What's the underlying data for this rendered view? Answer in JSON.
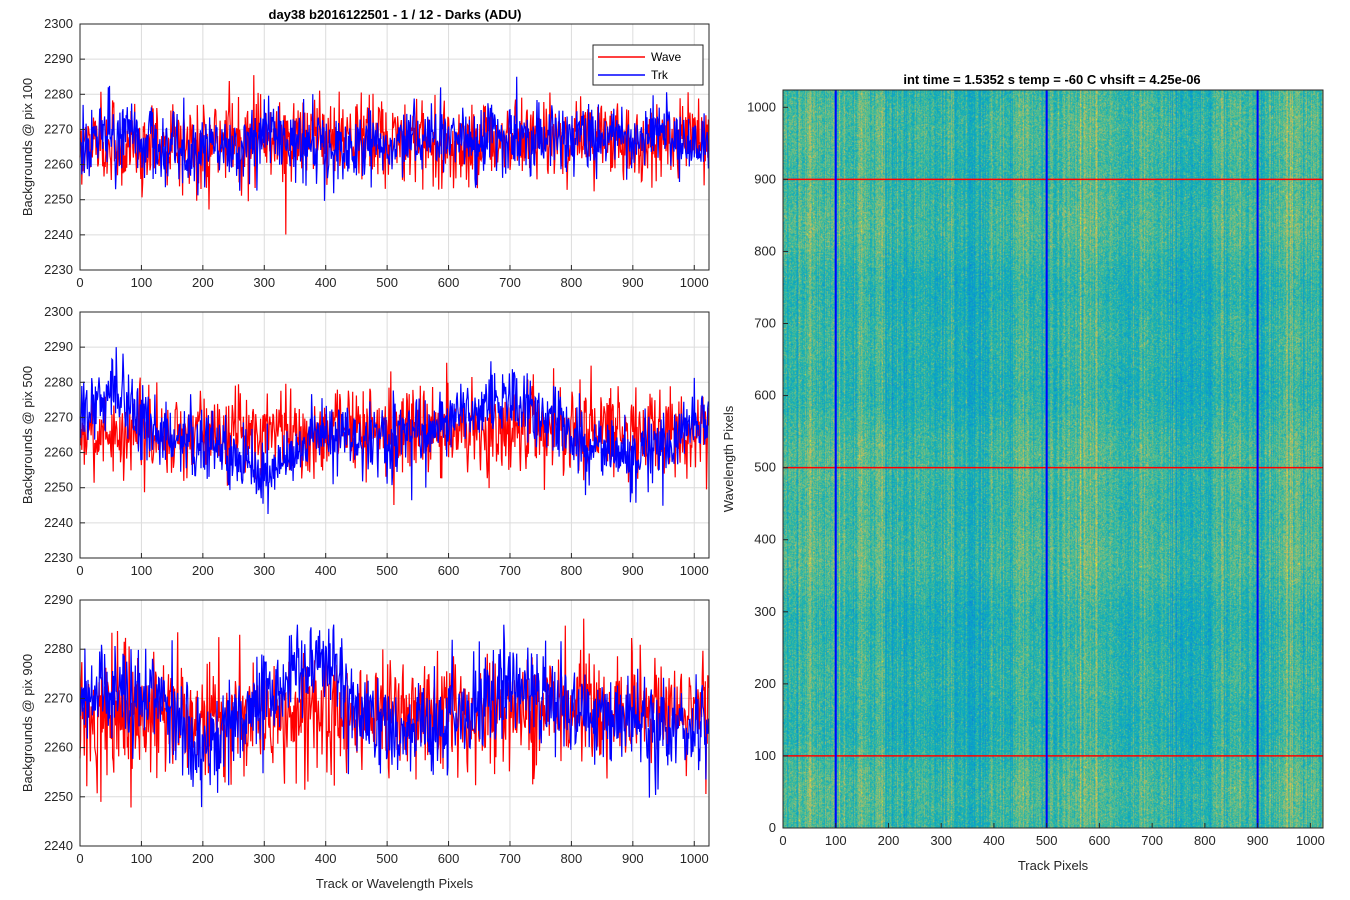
{
  "chart_data": [
    {
      "type": "line",
      "title": "day38 b2016122501 - 1 / 12 - Darks (ADU)",
      "xlabel": "",
      "ylabel": "Backgrounds @ pix 100",
      "xlim": [
        0,
        1024
      ],
      "ylim": [
        2230,
        2300
      ],
      "xticks": [
        0,
        100,
        200,
        300,
        400,
        500,
        600,
        700,
        800,
        900,
        1000
      ],
      "yticks": [
        2230,
        2240,
        2250,
        2260,
        2270,
        2280,
        2290,
        2300
      ],
      "grid": true,
      "legend": "top-right",
      "series": [
        {
          "name": "Wave",
          "color": "#ff0000",
          "mean": 2267,
          "noise": 6,
          "min": 2238,
          "max": 2290,
          "anchors": [
            [
              0,
              2266
            ],
            [
              200,
              2266
            ],
            [
              400,
              2268
            ],
            [
              600,
              2266
            ],
            [
              800,
              2268
            ],
            [
              1024,
              2267
            ]
          ]
        },
        {
          "name": "Trk",
          "color": "#0000ff",
          "mean": 2266,
          "noise": 5,
          "min": 2245,
          "max": 2285,
          "anchors": [
            [
              0,
              2262
            ],
            [
              40,
              2270
            ],
            [
              120,
              2266
            ],
            [
              200,
              2263
            ],
            [
              300,
              2268
            ],
            [
              400,
              2264
            ],
            [
              500,
              2265
            ],
            [
              700,
              2268
            ],
            [
              850,
              2267
            ],
            [
              950,
              2270
            ],
            [
              1024,
              2265
            ]
          ]
        }
      ]
    },
    {
      "type": "line",
      "title": "",
      "xlabel": "",
      "ylabel": "Backgrounds @ pix 500",
      "xlim": [
        0,
        1024
      ],
      "ylim": [
        2230,
        2300
      ],
      "xticks": [
        0,
        100,
        200,
        300,
        400,
        500,
        600,
        700,
        800,
        900,
        1000
      ],
      "yticks": [
        2230,
        2240,
        2250,
        2260,
        2270,
        2280,
        2290,
        2300
      ],
      "grid": true,
      "series": [
        {
          "name": "Wave",
          "color": "#ff0000",
          "mean": 2266,
          "noise": 6,
          "min": 2238,
          "max": 2295,
          "anchors": [
            [
              0,
              2265
            ],
            [
              200,
              2266
            ],
            [
              400,
              2266
            ],
            [
              600,
              2267
            ],
            [
              800,
              2267
            ],
            [
              1024,
              2266
            ]
          ]
        },
        {
          "name": "Trk",
          "color": "#0000ff",
          "mean": 2266,
          "noise": 5,
          "min": 2237,
          "max": 2290,
          "anchors": [
            [
              0,
              2270
            ],
            [
              60,
              2278
            ],
            [
              120,
              2265
            ],
            [
              200,
              2262
            ],
            [
              260,
              2258
            ],
            [
              300,
              2255
            ],
            [
              400,
              2266
            ],
            [
              500,
              2262
            ],
            [
              600,
              2270
            ],
            [
              700,
              2276
            ],
            [
              800,
              2265
            ],
            [
              900,
              2257
            ],
            [
              1024,
              2270
            ]
          ]
        }
      ]
    },
    {
      "type": "line",
      "title": "",
      "xlabel": "Track or Wavelength Pixels",
      "ylabel": "Backgrounds @ pix 900",
      "xlim": [
        0,
        1024
      ],
      "ylim": [
        2240,
        2290
      ],
      "xticks": [
        0,
        100,
        200,
        300,
        400,
        500,
        600,
        700,
        800,
        900,
        1000
      ],
      "yticks": [
        2240,
        2250,
        2260,
        2270,
        2280,
        2290
      ],
      "grid": true,
      "series": [
        {
          "name": "Wave",
          "color": "#ff0000",
          "mean": 2267,
          "noise": 6,
          "min": 2240,
          "max": 2289,
          "anchors": [
            [
              0,
              2266
            ],
            [
              200,
              2266
            ],
            [
              400,
              2267
            ],
            [
              600,
              2267
            ],
            [
              800,
              2268
            ],
            [
              1024,
              2268
            ]
          ]
        },
        {
          "name": "Trk",
          "color": "#0000ff",
          "mean": 2266,
          "noise": 5,
          "min": 2241,
          "max": 2285,
          "anchors": [
            [
              0,
              2268
            ],
            [
              60,
              2272
            ],
            [
              150,
              2268
            ],
            [
              200,
              2260
            ],
            [
              300,
              2270
            ],
            [
              400,
              2278
            ],
            [
              500,
              2262
            ],
            [
              600,
              2265
            ],
            [
              700,
              2272
            ],
            [
              800,
              2268
            ],
            [
              900,
              2266
            ],
            [
              1024,
              2263
            ]
          ]
        }
      ]
    },
    {
      "type": "heatmap",
      "title": "int time = 1.5352 s    temp = -60 C    vhsift = 4.25e-06",
      "xlabel": "Track Pixels",
      "ylabel": "Wavelength Pixels",
      "xlim": [
        0,
        1024
      ],
      "ylim": [
        0,
        1024
      ],
      "xticks": [
        0,
        100,
        200,
        300,
        400,
        500,
        600,
        700,
        800,
        900,
        1000
      ],
      "yticks": [
        0,
        100,
        200,
        300,
        400,
        500,
        600,
        700,
        800,
        900,
        1000
      ],
      "colormap": "parula",
      "vertical_markers": {
        "color": "#0000ff",
        "x": [
          100,
          500,
          900
        ]
      },
      "horizontal_markers": {
        "color": "#ff0000",
        "y": [
          100,
          500,
          900
        ]
      }
    }
  ]
}
